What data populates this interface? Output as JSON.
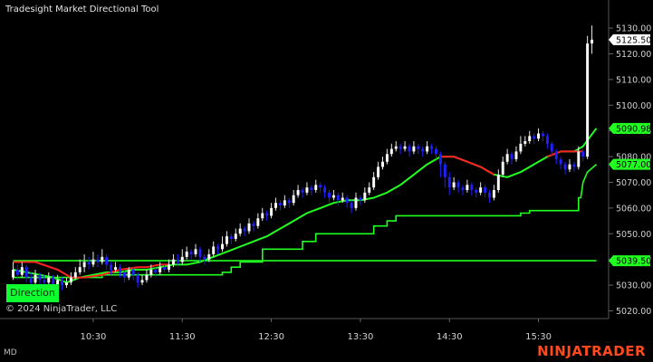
{
  "window": {
    "title": "Tradesight Market Directional Tool",
    "copyright": "© 2024 NinjaTrader, LLC",
    "status": "MD",
    "brand": "NINJATRADER",
    "direction_label": "Direction"
  },
  "colors": {
    "background": "#000000",
    "bull_candle": "#ffffff",
    "bear_candle": "#2020ff",
    "green_line": "#20ff20",
    "red_line": "#ff2020",
    "price_badge": "#ffffff",
    "line_badge": "#20ff20",
    "brand": "#ff4a1c"
  },
  "chart_data": {
    "type": "candlestick",
    "title": "Tradesight Market Directional Tool",
    "ylim": [
      5017,
      5136
    ],
    "y_ticks": [
      5020,
      5030,
      5040,
      5050,
      5060,
      5070,
      5080,
      5090,
      5100,
      5110,
      5120,
      5130
    ],
    "y_tick_labels": [
      "5020.00",
      "5030.00",
      "5040.00",
      "5050.00",
      "5060.00",
      "5070.00",
      "5080.00",
      "5090.00",
      "5100.00",
      "5110.00",
      "5120.00",
      "5130.00"
    ],
    "x_ticks": [
      {
        "bar": 18,
        "label": "10:30"
      },
      {
        "bar": 38,
        "label": "11:30"
      },
      {
        "bar": 58,
        "label": "12:30"
      },
      {
        "bar": 78,
        "label": "13:30"
      },
      {
        "bar": 98,
        "label": "14:30"
      },
      {
        "bar": 118,
        "label": "15:30"
      }
    ],
    "n_bars": 131,
    "price_labels": [
      {
        "value": 5125.5,
        "label": "5125.50",
        "kind": "price"
      },
      {
        "value": 5090.98,
        "label": "5090.98",
        "kind": "line"
      },
      {
        "value": 5077.0,
        "label": "5077.00",
        "kind": "line"
      },
      {
        "value": 5039.5,
        "label": "5039.50",
        "kind": "line"
      }
    ],
    "trend_line": [
      [
        0,
        5036
      ],
      [
        3,
        5035
      ],
      [
        6,
        5034
      ],
      [
        9,
        5033
      ],
      [
        12,
        5031
      ],
      [
        15,
        5033
      ],
      [
        18,
        5034
      ],
      [
        21,
        5035
      ],
      [
        24,
        5035
      ],
      [
        27,
        5036
      ],
      [
        30,
        5036
      ],
      [
        33,
        5037
      ],
      [
        36,
        5038
      ],
      [
        39,
        5038
      ],
      [
        42,
        5039
      ],
      [
        45,
        5041
      ],
      [
        48,
        5043
      ],
      [
        51,
        5045
      ],
      [
        54,
        5047
      ],
      [
        57,
        5049
      ],
      [
        60,
        5052
      ],
      [
        63,
        5055
      ],
      [
        66,
        5058
      ],
      [
        69,
        5060
      ],
      [
        72,
        5062
      ],
      [
        75,
        5063
      ],
      [
        78,
        5063
      ],
      [
        81,
        5064
      ],
      [
        84,
        5066
      ],
      [
        87,
        5069
      ],
      [
        90,
        5073
      ],
      [
        93,
        5077
      ],
      [
        96,
        5080
      ],
      [
        99,
        5080
      ],
      [
        102,
        5078
      ],
      [
        105,
        5076
      ],
      [
        108,
        5073
      ],
      [
        111,
        5072
      ],
      [
        114,
        5074
      ],
      [
        117,
        5077
      ],
      [
        120,
        5080
      ],
      [
        123,
        5082
      ],
      [
        126,
        5082
      ],
      [
        128,
        5084
      ],
      [
        131,
        5091
      ]
    ],
    "red_segments": [
      [
        [
          0,
          5039
        ],
        [
          5,
          5039
        ],
        [
          10,
          5036
        ],
        [
          13,
          5033
        ],
        [
          16,
          5033
        ],
        [
          20,
          5034
        ],
        [
          24,
          5036
        ],
        [
          28,
          5037
        ],
        [
          30,
          5037
        ],
        [
          33,
          5038
        ],
        [
          35,
          5038
        ]
      ],
      [
        [
          96,
          5080
        ],
        [
          99,
          5080
        ],
        [
          102,
          5078
        ],
        [
          105,
          5076
        ],
        [
          108,
          5073
        ]
      ],
      [
        [
          120,
          5080
        ],
        [
          123,
          5082
        ],
        [
          126,
          5082
        ],
        [
          128,
          5082
        ]
      ]
    ],
    "step_line": [
      [
        0,
        5033
      ],
      [
        20,
        5033
      ],
      [
        20,
        5034
      ],
      [
        47,
        5034
      ],
      [
        47,
        5035
      ],
      [
        49,
        5035
      ],
      [
        49,
        5037
      ],
      [
        51,
        5037
      ],
      [
        51,
        5039
      ],
      [
        56,
        5039
      ],
      [
        56,
        5044
      ],
      [
        65,
        5044
      ],
      [
        65,
        5047
      ],
      [
        68,
        5047
      ],
      [
        68,
        5050
      ],
      [
        81,
        5050
      ],
      [
        81,
        5053
      ],
      [
        84,
        5053
      ],
      [
        84,
        5055
      ],
      [
        86,
        5055
      ],
      [
        86,
        5057
      ],
      [
        114,
        5057
      ],
      [
        114,
        5058
      ],
      [
        116,
        5058
      ],
      [
        116,
        5059
      ],
      [
        127,
        5059
      ],
      [
        127,
        5064
      ],
      [
        127.5,
        5064
      ],
      [
        128,
        5070
      ],
      [
        129,
        5074
      ],
      [
        131,
        5077
      ]
    ],
    "flat_line": [
      [
        0,
        5039.5
      ],
      [
        131,
        5039.5
      ]
    ],
    "candles": [
      [
        0,
        5033,
        5036,
        5032,
        5039
      ],
      [
        1,
        5036,
        5034,
        5032,
        5038
      ],
      [
        2,
        5034,
        5037,
        5033,
        5039
      ],
      [
        3,
        5037,
        5033,
        5031,
        5038
      ],
      [
        4,
        5033,
        5031,
        5029,
        5035
      ],
      [
        5,
        5031,
        5034,
        5030,
        5036
      ],
      [
        6,
        5034,
        5032,
        5030,
        5035
      ],
      [
        7,
        5032,
        5031,
        5028,
        5034
      ],
      [
        8,
        5031,
        5033,
        5029,
        5035
      ],
      [
        9,
        5033,
        5029,
        5027,
        5034
      ],
      [
        10,
        5029,
        5032,
        5028,
        5034
      ],
      [
        11,
        5032,
        5030,
        5028,
        5033
      ],
      [
        12,
        5030,
        5031,
        5029,
        5033
      ],
      [
        13,
        5031,
        5033,
        5030,
        5035
      ],
      [
        14,
        5033,
        5035,
        5032,
        5037
      ],
      [
        15,
        5035,
        5037,
        5034,
        5040
      ],
      [
        16,
        5037,
        5039,
        5035,
        5042
      ],
      [
        17,
        5039,
        5038,
        5036,
        5041
      ],
      [
        18,
        5038,
        5040,
        5037,
        5043
      ],
      [
        19,
        5040,
        5039,
        5037,
        5042
      ],
      [
        20,
        5039,
        5041,
        5038,
        5044
      ],
      [
        21,
        5041,
        5038,
        5036,
        5042
      ],
      [
        22,
        5038,
        5036,
        5034,
        5039
      ],
      [
        23,
        5036,
        5037,
        5035,
        5039
      ],
      [
        24,
        5037,
        5035,
        5033,
        5038
      ],
      [
        25,
        5035,
        5033,
        5031,
        5036
      ],
      [
        26,
        5033,
        5036,
        5032,
        5037
      ],
      [
        27,
        5036,
        5034,
        5032,
        5037
      ],
      [
        28,
        5034,
        5031,
        5029,
        5035
      ],
      [
        29,
        5031,
        5032,
        5030,
        5034
      ],
      [
        30,
        5032,
        5034,
        5031,
        5036
      ],
      [
        31,
        5034,
        5036,
        5033,
        5038
      ],
      [
        32,
        5036,
        5035,
        5033,
        5037
      ],
      [
        33,
        5035,
        5037,
        5034,
        5039
      ],
      [
        34,
        5037,
        5036,
        5035,
        5038
      ],
      [
        35,
        5036,
        5038,
        5035,
        5040
      ],
      [
        36,
        5038,
        5040,
        5037,
        5042
      ],
      [
        37,
        5040,
        5039,
        5038,
        5042
      ],
      [
        38,
        5039,
        5041,
        5038,
        5044
      ],
      [
        39,
        5041,
        5043,
        5040,
        5045
      ],
      [
        40,
        5043,
        5042,
        5040,
        5044
      ],
      [
        41,
        5042,
        5044,
        5041,
        5046
      ],
      [
        42,
        5044,
        5041,
        5039,
        5045
      ],
      [
        43,
        5041,
        5040,
        5038,
        5042
      ],
      [
        44,
        5040,
        5042,
        5039,
        5044
      ],
      [
        45,
        5042,
        5045,
        5041,
        5047
      ],
      [
        46,
        5045,
        5044,
        5042,
        5046
      ],
      [
        47,
        5044,
        5046,
        5043,
        5049
      ],
      [
        48,
        5046,
        5049,
        5045,
        5051
      ],
      [
        49,
        5049,
        5048,
        5046,
        5050
      ],
      [
        50,
        5048,
        5050,
        5047,
        5052
      ],
      [
        51,
        5050,
        5052,
        5049,
        5054
      ],
      [
        52,
        5052,
        5051,
        5049,
        5053
      ],
      [
        53,
        5051,
        5054,
        5050,
        5056
      ],
      [
        54,
        5054,
        5053,
        5051,
        5055
      ],
      [
        55,
        5053,
        5056,
        5052,
        5058
      ],
      [
        56,
        5056,
        5058,
        5055,
        5060
      ],
      [
        57,
        5058,
        5057,
        5055,
        5059
      ],
      [
        58,
        5057,
        5060,
        5056,
        5062
      ],
      [
        59,
        5060,
        5062,
        5059,
        5064
      ],
      [
        60,
        5062,
        5061,
        5059,
        5063
      ],
      [
        61,
        5061,
        5063,
        5060,
        5065
      ],
      [
        62,
        5063,
        5062,
        5060,
        5064
      ],
      [
        63,
        5062,
        5065,
        5061,
        5067
      ],
      [
        64,
        5065,
        5067,
        5064,
        5069
      ],
      [
        65,
        5067,
        5066,
        5064,
        5068
      ],
      [
        66,
        5066,
        5068,
        5065,
        5070
      ],
      [
        67,
        5068,
        5067,
        5065,
        5069
      ],
      [
        68,
        5067,
        5069,
        5066,
        5071
      ],
      [
        69,
        5069,
        5068,
        5066,
        5070
      ],
      [
        70,
        5068,
        5066,
        5064,
        5069
      ],
      [
        71,
        5066,
        5064,
        5062,
        5067
      ],
      [
        72,
        5064,
        5065,
        5063,
        5067
      ],
      [
        73,
        5065,
        5063,
        5061,
        5066
      ],
      [
        74,
        5063,
        5064,
        5062,
        5066
      ],
      [
        75,
        5064,
        5062,
        5060,
        5065
      ],
      [
        76,
        5062,
        5060,
        5058,
        5063
      ],
      [
        77,
        5060,
        5064,
        5059,
        5066
      ],
      [
        78,
        5064,
        5063,
        5061,
        5065
      ],
      [
        79,
        5063,
        5066,
        5062,
        5068
      ],
      [
        80,
        5066,
        5068,
        5065,
        5070
      ],
      [
        81,
        5068,
        5072,
        5067,
        5074
      ],
      [
        82,
        5072,
        5076,
        5071,
        5078
      ],
      [
        83,
        5076,
        5078,
        5075,
        5080
      ],
      [
        84,
        5078,
        5081,
        5077,
        5083
      ],
      [
        85,
        5081,
        5083,
        5080,
        5085
      ],
      [
        86,
        5083,
        5084,
        5082,
        5086
      ],
      [
        87,
        5084,
        5083,
        5081,
        5085
      ],
      [
        88,
        5083,
        5084,
        5082,
        5086
      ],
      [
        89,
        5084,
        5082,
        5080,
        5085
      ],
      [
        90,
        5082,
        5084,
        5081,
        5086
      ],
      [
        91,
        5084,
        5083,
        5081,
        5085
      ],
      [
        92,
        5083,
        5082,
        5080,
        5084
      ],
      [
        93,
        5082,
        5084,
        5081,
        5086
      ],
      [
        94,
        5084,
        5083,
        5081,
        5085
      ],
      [
        95,
        5083,
        5081,
        5079,
        5084
      ],
      [
        96,
        5081,
        5077,
        5072,
        5082
      ],
      [
        97,
        5077,
        5072,
        5068,
        5078
      ],
      [
        98,
        5072,
        5068,
        5065,
        5074
      ],
      [
        99,
        5068,
        5070,
        5067,
        5072
      ],
      [
        100,
        5070,
        5068,
        5066,
        5071
      ],
      [
        101,
        5068,
        5067,
        5065,
        5069
      ],
      [
        102,
        5067,
        5069,
        5066,
        5071
      ],
      [
        103,
        5069,
        5067,
        5065,
        5070
      ],
      [
        104,
        5067,
        5066,
        5064,
        5068
      ],
      [
        105,
        5066,
        5068,
        5065,
        5070
      ],
      [
        106,
        5068,
        5066,
        5064,
        5069
      ],
      [
        107,
        5066,
        5064,
        5062,
        5067
      ],
      [
        108,
        5064,
        5067,
        5063,
        5069
      ],
      [
        109,
        5067,
        5073,
        5066,
        5075
      ],
      [
        110,
        5073,
        5078,
        5072,
        5080
      ],
      [
        111,
        5078,
        5081,
        5077,
        5083
      ],
      [
        112,
        5081,
        5079,
        5077,
        5082
      ],
      [
        113,
        5079,
        5082,
        5078,
        5084
      ],
      [
        114,
        5082,
        5085,
        5081,
        5088
      ],
      [
        115,
        5085,
        5086,
        5084,
        5088
      ],
      [
        116,
        5086,
        5088,
        5085,
        5090
      ],
      [
        117,
        5088,
        5087,
        5085,
        5089
      ],
      [
        118,
        5087,
        5089,
        5086,
        5091
      ],
      [
        119,
        5089,
        5088,
        5086,
        5090
      ],
      [
        120,
        5088,
        5085,
        5083,
        5089
      ],
      [
        121,
        5085,
        5082,
        5080,
        5086
      ],
      [
        122,
        5082,
        5079,
        5077,
        5083
      ],
      [
        123,
        5079,
        5077,
        5075,
        5080
      ],
      [
        124,
        5077,
        5075,
        5073,
        5078
      ],
      [
        125,
        5075,
        5077,
        5074,
        5079
      ],
      [
        126,
        5077,
        5076,
        5074,
        5078
      ],
      [
        127,
        5076,
        5082,
        5075,
        5084
      ],
      [
        128,
        5082,
        5080,
        5078,
        5083
      ],
      [
        129,
        5080,
        5124,
        5079,
        5127
      ],
      [
        130,
        5124,
        5125.5,
        5120,
        5131
      ]
    ]
  }
}
